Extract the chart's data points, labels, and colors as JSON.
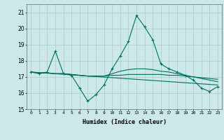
{
  "title": "",
  "xlabel": "Humidex (Indice chaleur)",
  "xlim": [
    -0.5,
    23.5
  ],
  "ylim": [
    15,
    21.5
  ],
  "yticks": [
    15,
    16,
    17,
    18,
    19,
    20,
    21
  ],
  "xticks": [
    0,
    1,
    2,
    3,
    4,
    5,
    6,
    7,
    8,
    9,
    10,
    11,
    12,
    13,
    14,
    15,
    16,
    17,
    18,
    19,
    20,
    21,
    22,
    23
  ],
  "bg_color": "#cce8e8",
  "line_color": "#007060",
  "grid_color": "#aacccc",
  "lines": [
    {
      "x": [
        0,
        1,
        2,
        3,
        4,
        5,
        6,
        7,
        8,
        9,
        10,
        11,
        12,
        13,
        14,
        15,
        16,
        17,
        18,
        19,
        20,
        21,
        22,
        23
      ],
      "y": [
        17.3,
        17.2,
        17.3,
        18.6,
        17.2,
        17.1,
        16.3,
        15.5,
        15.9,
        16.5,
        17.5,
        18.3,
        19.2,
        20.8,
        20.1,
        19.3,
        17.8,
        17.5,
        17.3,
        17.1,
        16.8,
        16.3,
        16.1,
        16.4
      ],
      "marker": true
    },
    {
      "x": [
        0,
        1,
        2,
        3,
        4,
        5,
        6,
        7,
        8,
        9,
        10,
        11,
        12,
        13,
        14,
        15,
        16,
        17,
        18,
        19,
        20,
        21,
        22,
        23
      ],
      "y": [
        17.3,
        17.25,
        17.25,
        17.2,
        17.2,
        17.15,
        17.1,
        17.05,
        17.05,
        17.05,
        17.1,
        17.1,
        17.15,
        17.15,
        17.15,
        17.15,
        17.15,
        17.1,
        17.1,
        17.05,
        17.0,
        16.95,
        16.9,
        16.85
      ],
      "marker": false
    },
    {
      "x": [
        0,
        1,
        2,
        3,
        4,
        5,
        6,
        7,
        8,
        9,
        10,
        11,
        12,
        13,
        14,
        15,
        16,
        17,
        18,
        19,
        20,
        21,
        22,
        23
      ],
      "y": [
        17.3,
        17.25,
        17.25,
        17.2,
        17.2,
        17.15,
        17.1,
        17.05,
        17.05,
        17.05,
        17.2,
        17.35,
        17.45,
        17.5,
        17.5,
        17.45,
        17.35,
        17.3,
        17.2,
        17.1,
        17.0,
        16.9,
        16.8,
        16.7
      ],
      "marker": false
    },
    {
      "x": [
        0,
        23
      ],
      "y": [
        17.3,
        16.5
      ],
      "marker": false
    }
  ]
}
